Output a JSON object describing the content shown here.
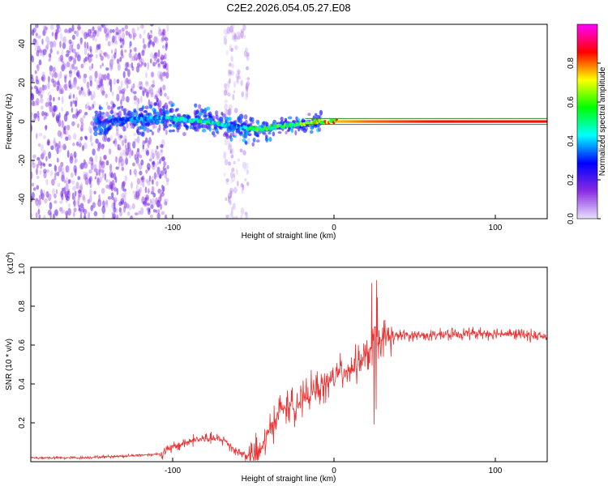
{
  "title": "C2E2.2026.054.05.27.E08",
  "chart_data": [
    {
      "type": "heatmap",
      "name": "spectrogram",
      "xlabel": "Height of straight line (km)",
      "ylabel": "Frequency (Hz)",
      "xlim": [
        -190,
        130
      ],
      "ylim": [
        -50,
        50
      ],
      "x_ticks": [
        "-100",
        "0",
        "100"
      ],
      "y_ticks": [
        "-40",
        "-20",
        "0",
        "20",
        "40"
      ],
      "colorbar": {
        "label": "Normalized spectral amplitude",
        "range": [
          0.0,
          1.0
        ],
        "ticks": [
          "0.0",
          "0.2",
          "0.4",
          "0.6",
          "0.8"
        ],
        "colors": [
          "#e8e0ff",
          "#8a2be2",
          "#0000ff",
          "#00ffff",
          "#00ff00",
          "#ffff00",
          "#ff0000",
          "#ff00ff"
        ]
      },
      "ridge": {
        "x": [
          -145,
          -130,
          -110,
          -95,
          -80,
          -70,
          -60,
          -50,
          -40,
          -30,
          -20,
          -10,
          0,
          20,
          60,
          100,
          130
        ],
        "frequency": [
          0,
          1,
          2,
          1,
          0,
          -2,
          -3,
          -4,
          -3,
          -2,
          -1,
          0,
          0,
          0,
          0,
          0,
          0
        ],
        "amplitude": [
          0.3,
          0.35,
          0.4,
          0.45,
          0.5,
          0.45,
          0.4,
          0.55,
          0.55,
          0.55,
          0.6,
          0.7,
          0.75,
          0.8,
          0.85,
          0.85,
          0.85
        ]
      },
      "noise_regions": [
        {
          "x_range": [
            -190,
            -105
          ],
          "freq_range": [
            -50,
            50
          ],
          "amplitude": 0.12
        },
        {
          "x_range": [
            -70,
            -55
          ],
          "freq_range": [
            -50,
            50
          ],
          "amplitude": 0.06
        }
      ]
    },
    {
      "type": "line",
      "name": "snr",
      "xlabel": "Height of straight line (km)",
      "ylabel": "SNR (10 * v/v)",
      "multiplier": "(x10",
      "multiplier_exp": "4",
      "color": "#ee3030",
      "xlim": [
        -190,
        130
      ],
      "ylim": [
        0,
        1.0
      ],
      "x_ticks": [
        "-100",
        "0",
        "100"
      ],
      "y_ticks": [
        "0.2",
        "0.4",
        "0.6",
        "0.8",
        "1.0"
      ],
      "x": [
        -190,
        -160,
        -130,
        -110,
        -100,
        -90,
        -80,
        -70,
        -62,
        -55,
        -48,
        -44,
        -40,
        -35,
        -30,
        -25,
        -20,
        -15,
        -10,
        -5,
        0,
        5,
        10,
        15,
        20,
        22,
        23,
        25,
        30,
        40,
        60,
        80,
        100,
        120,
        130
      ],
      "values": [
        0.02,
        0.02,
        0.03,
        0.04,
        0.08,
        0.11,
        0.12,
        0.11,
        0.05,
        0.03,
        0.05,
        0.12,
        0.2,
        0.27,
        0.28,
        0.3,
        0.32,
        0.37,
        0.38,
        0.41,
        0.45,
        0.47,
        0.49,
        0.52,
        0.56,
        0.6,
        0.7,
        0.62,
        0.64,
        0.65,
        0.65,
        0.66,
        0.66,
        0.65,
        0.64
      ]
    }
  ]
}
